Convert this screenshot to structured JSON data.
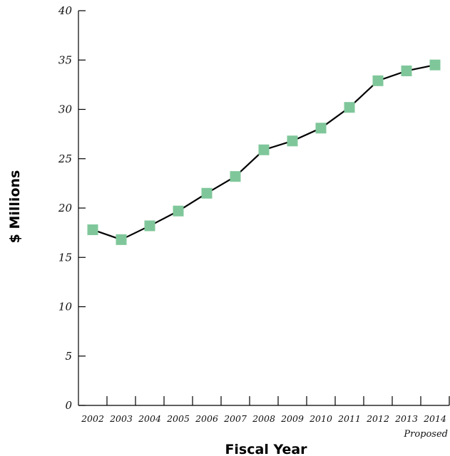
{
  "chart_data": {
    "type": "line",
    "title": "",
    "xlabel": "Fiscal Year",
    "ylabel": "$ Millions",
    "categories": [
      "2002",
      "2003",
      "2004",
      "2005",
      "2006",
      "2007",
      "2008",
      "2009",
      "2010",
      "2011",
      "2012",
      "2013",
      "2014"
    ],
    "series": [
      {
        "values": [
          17.8,
          16.8,
          18.2,
          19.7,
          21.5,
          23.2,
          25.9,
          26.8,
          28.1,
          30.2,
          32.9,
          33.9,
          34.5
        ]
      }
    ],
    "annotations": [
      {
        "category": "2014",
        "text": "Proposed"
      }
    ],
    "ylim": [
      0,
      40
    ],
    "yticks": [
      0,
      5,
      10,
      15,
      20,
      25,
      30,
      35,
      40
    ],
    "grid": false,
    "legend": "none",
    "colors": {
      "line": "#000000",
      "marker": "#7fc79a",
      "axis": "#000000"
    }
  }
}
